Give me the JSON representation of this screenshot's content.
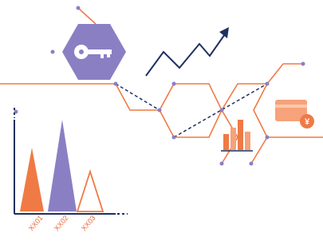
{
  "chart_labels": [
    "XX01",
    "XX02",
    "XX03"
  ],
  "currency_symbol": "¥"
}
